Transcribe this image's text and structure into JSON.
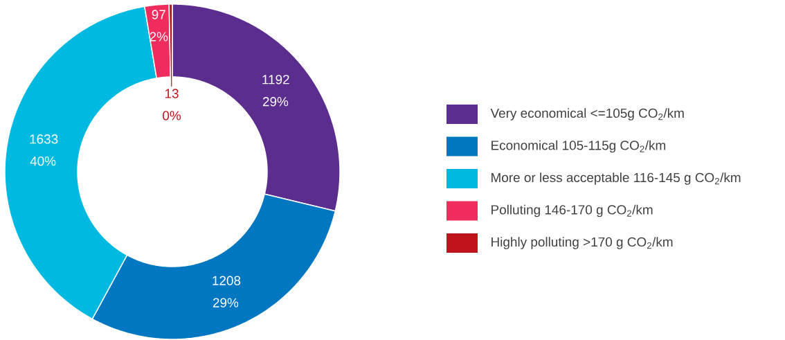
{
  "chart_data": {
    "type": "donut",
    "categories": [
      "Very economical <=105g CO$_{2}$/km",
      "Economical 105-115g CO$_{2}$/km",
      "More or less acceptable 116-145 g CO$_{2}$/km",
      "Polluting 146-170 g CO$_{2}$/km",
      "Highly polluting >170 g CO$_{2}$/km"
    ],
    "values": [
      1192,
      1208,
      1633,
      97,
      13
    ],
    "colors": [
      "#5b2d8e",
      "#0077c0",
      "#00b9e0",
      "#ee2d5e",
      "#c0141c"
    ],
    "value_labels": [
      "1192 29%",
      "1208 29%",
      "1633 40%",
      "97 2%",
      "13 0%"
    ],
    "legend": "right"
  }
}
